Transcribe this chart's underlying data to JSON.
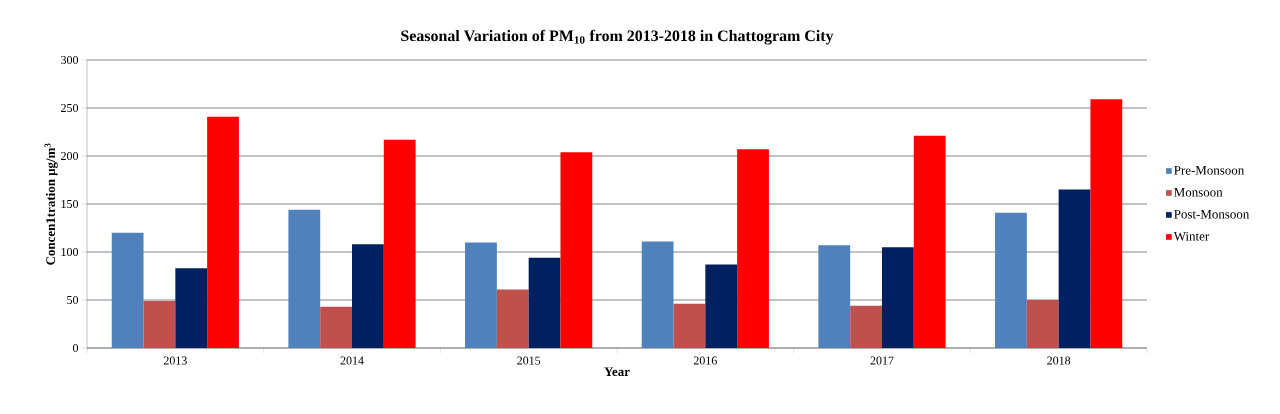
{
  "chart_data": {
    "type": "bar",
    "title": "Seasonal Variation of PM$_{10}$ from 2013-2018 in Chattogram City",
    "xlabel": "Year",
    "ylabel": "Concen1tration μg/m$^{3}$",
    "categories": [
      "2013",
      "2014",
      "2015",
      "2016",
      "2017",
      "2018"
    ],
    "series": [
      {
        "name": "Pre-Monsoon",
        "color": "#4f81bd",
        "values": [
          120,
          144,
          110,
          111,
          107,
          141
        ]
      },
      {
        "name": "Monsoon",
        "color": "#c0504d",
        "values": [
          49,
          43,
          61,
          46,
          44,
          50
        ]
      },
      {
        "name": "Post-Monsoon",
        "color": "#002060",
        "values": [
          83,
          108,
          94,
          87,
          105,
          165
        ]
      },
      {
        "name": "Winter",
        "color": "#ff0000",
        "values": [
          241,
          217,
          204,
          207,
          221,
          259
        ]
      }
    ],
    "ylim": [
      0,
      300
    ],
    "yticks": [
      0,
      50,
      100,
      150,
      200,
      250,
      300
    ],
    "grid": "y",
    "legend": "right"
  }
}
